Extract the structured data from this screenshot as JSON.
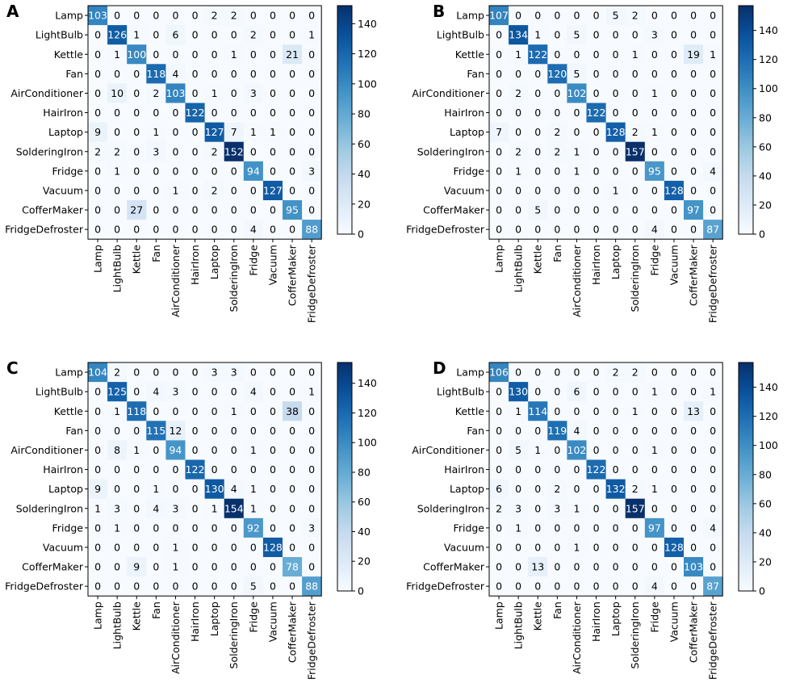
{
  "chart_data": [
    {
      "type": "heatmap",
      "panel_label": "A",
      "x_categories": [
        "Lamp",
        "LightBulb",
        "Kettle",
        "Fan",
        "AirConditioner",
        "HairIron",
        "Laptop",
        "SolderingIron",
        "Fridge",
        "Vacuum",
        "CofferMaker",
        "FridgeDefroster"
      ],
      "y_categories": [
        "Lamp",
        "LightBulb",
        "Kettle",
        "Fan",
        "AirConditioner",
        "HairIron",
        "Laptop",
        "SolderingIron",
        "Fridge",
        "Vacuum",
        "CofferMaker",
        "FridgeDefroster"
      ],
      "matrix": [
        [
          103,
          0,
          0,
          0,
          0,
          0,
          2,
          2,
          0,
          0,
          0,
          0
        ],
        [
          0,
          126,
          1,
          0,
          6,
          0,
          0,
          0,
          2,
          0,
          0,
          1
        ],
        [
          0,
          1,
          100,
          0,
          0,
          0,
          0,
          1,
          0,
          0,
          21,
          0
        ],
        [
          0,
          0,
          0,
          118,
          4,
          0,
          0,
          0,
          0,
          0,
          0,
          0
        ],
        [
          0,
          10,
          0,
          2,
          103,
          0,
          1,
          0,
          3,
          0,
          0,
          0
        ],
        [
          0,
          0,
          0,
          0,
          0,
          122,
          0,
          0,
          0,
          0,
          0,
          0
        ],
        [
          9,
          0,
          0,
          1,
          0,
          0,
          127,
          7,
          1,
          1,
          0,
          0
        ],
        [
          2,
          2,
          0,
          3,
          0,
          0,
          2,
          152,
          0,
          0,
          0,
          0
        ],
        [
          0,
          1,
          0,
          0,
          0,
          0,
          0,
          0,
          94,
          0,
          0,
          3
        ],
        [
          0,
          0,
          0,
          0,
          1,
          0,
          2,
          0,
          0,
          127,
          0,
          0
        ],
        [
          0,
          0,
          27,
          0,
          0,
          0,
          0,
          0,
          0,
          0,
          95,
          0
        ],
        [
          0,
          0,
          0,
          0,
          0,
          0,
          0,
          0,
          4,
          0,
          0,
          88
        ]
      ],
      "vmin": 0,
      "vmax": 152,
      "colorbar_ticks": [
        0,
        20,
        40,
        60,
        80,
        100,
        120,
        140
      ],
      "colormap": "Blues"
    },
    {
      "type": "heatmap",
      "panel_label": "B",
      "x_categories": [
        "Lamp",
        "LightBulb",
        "Kettle",
        "Fan",
        "AirConditioner",
        "HairIron",
        "Laptop",
        "SolderingIron",
        "Fridge",
        "Vacuum",
        "CofferMaker",
        "FridgeDefroster"
      ],
      "y_categories": [
        "Lamp",
        "LightBulb",
        "Kettle",
        "Fan",
        "AirConditioner",
        "HairIron",
        "Laptop",
        "SolderingIron",
        "Fridge",
        "Vacuum",
        "CofferMaker",
        "FridgeDefroster"
      ],
      "matrix": [
        [
          107,
          0,
          0,
          0,
          0,
          0,
          5,
          2,
          0,
          0,
          0,
          0
        ],
        [
          0,
          134,
          1,
          0,
          5,
          0,
          0,
          0,
          3,
          0,
          0,
          0
        ],
        [
          0,
          1,
          122,
          0,
          0,
          0,
          0,
          1,
          0,
          0,
          19,
          1
        ],
        [
          0,
          0,
          0,
          120,
          5,
          0,
          0,
          0,
          0,
          0,
          0,
          0
        ],
        [
          0,
          2,
          0,
          0,
          102,
          0,
          0,
          0,
          1,
          0,
          0,
          0
        ],
        [
          0,
          0,
          0,
          0,
          0,
          122,
          0,
          0,
          0,
          0,
          0,
          0
        ],
        [
          7,
          0,
          0,
          2,
          0,
          0,
          128,
          2,
          1,
          0,
          0,
          0
        ],
        [
          0,
          2,
          0,
          2,
          1,
          0,
          0,
          157,
          0,
          0,
          0,
          0
        ],
        [
          0,
          1,
          0,
          0,
          1,
          0,
          0,
          0,
          95,
          0,
          0,
          4
        ],
        [
          0,
          0,
          0,
          0,
          0,
          0,
          1,
          0,
          0,
          128,
          0,
          0
        ],
        [
          0,
          0,
          5,
          0,
          0,
          0,
          0,
          0,
          0,
          0,
          97,
          0
        ],
        [
          0,
          0,
          0,
          0,
          0,
          0,
          0,
          0,
          4,
          0,
          0,
          87
        ]
      ],
      "vmin": 0,
      "vmax": 157,
      "colorbar_ticks": [
        0,
        20,
        40,
        60,
        80,
        100,
        120,
        140
      ],
      "colormap": "Blues"
    },
    {
      "type": "heatmap",
      "panel_label": "C",
      "x_categories": [
        "Lamp",
        "LightBulb",
        "Kettle",
        "Fan",
        "AirConditioner",
        "HairIron",
        "Laptop",
        "SolderingIron",
        "Fridge",
        "Vacuum",
        "CofferMaker",
        "FridgeDefroster"
      ],
      "y_categories": [
        "Lamp",
        "LightBulb",
        "Kettle",
        "Fan",
        "AirConditioner",
        "HairIron",
        "Laptop",
        "SolderingIron",
        "Fridge",
        "Vacuum",
        "CofferMaker",
        "FridgeDefroster"
      ],
      "matrix": [
        [
          104,
          2,
          0,
          0,
          0,
          0,
          3,
          3,
          0,
          0,
          0,
          0
        ],
        [
          0,
          125,
          0,
          4,
          3,
          0,
          0,
          0,
          4,
          0,
          0,
          1
        ],
        [
          0,
          1,
          118,
          0,
          0,
          0,
          0,
          1,
          0,
          0,
          38,
          0
        ],
        [
          0,
          0,
          0,
          115,
          12,
          0,
          0,
          0,
          0,
          0,
          0,
          0
        ],
        [
          0,
          8,
          1,
          0,
          94,
          0,
          0,
          0,
          1,
          0,
          0,
          0
        ],
        [
          0,
          0,
          0,
          0,
          0,
          122,
          0,
          0,
          0,
          0,
          0,
          0
        ],
        [
          9,
          0,
          0,
          1,
          0,
          0,
          130,
          4,
          1,
          0,
          0,
          0
        ],
        [
          1,
          3,
          0,
          4,
          3,
          0,
          1,
          154,
          1,
          0,
          0,
          0
        ],
        [
          0,
          1,
          0,
          0,
          0,
          0,
          0,
          0,
          92,
          0,
          0,
          3
        ],
        [
          0,
          0,
          0,
          0,
          1,
          0,
          0,
          0,
          0,
          128,
          0,
          0
        ],
        [
          0,
          0,
          9,
          0,
          1,
          0,
          0,
          0,
          0,
          0,
          78,
          0
        ],
        [
          0,
          0,
          0,
          0,
          0,
          0,
          0,
          0,
          5,
          0,
          0,
          88
        ]
      ],
      "vmin": 0,
      "vmax": 154,
      "colorbar_ticks": [
        0,
        20,
        40,
        60,
        80,
        100,
        120,
        140
      ],
      "colormap": "Blues"
    },
    {
      "type": "heatmap",
      "panel_label": "D",
      "x_categories": [
        "Lamp",
        "LightBulb",
        "Kettle",
        "Fan",
        "AirConditioner",
        "HairIron",
        "Laptop",
        "SolderingIron",
        "Fridge",
        "Vacuum",
        "CofferMaker",
        "FridgeDefroster"
      ],
      "y_categories": [
        "Lamp",
        "LightBulb",
        "Kettle",
        "Fan",
        "AirConditioner",
        "HairIron",
        "Laptop",
        "SolderingIron",
        "Fridge",
        "Vacuum",
        "CofferMaker",
        "FridgeDefroster"
      ],
      "matrix": [
        [
          106,
          0,
          0,
          0,
          0,
          0,
          2,
          2,
          0,
          0,
          0,
          0
        ],
        [
          0,
          130,
          0,
          0,
          6,
          0,
          0,
          0,
          1,
          0,
          0,
          1
        ],
        [
          0,
          1,
          114,
          0,
          0,
          0,
          0,
          1,
          0,
          0,
          13,
          0
        ],
        [
          0,
          0,
          0,
          119,
          4,
          0,
          0,
          0,
          0,
          0,
          0,
          0
        ],
        [
          0,
          5,
          1,
          0,
          102,
          0,
          0,
          0,
          1,
          0,
          0,
          0
        ],
        [
          0,
          0,
          0,
          0,
          0,
          122,
          0,
          0,
          0,
          0,
          0,
          0
        ],
        [
          6,
          0,
          0,
          2,
          0,
          0,
          132,
          2,
          1,
          0,
          0,
          0
        ],
        [
          2,
          3,
          0,
          3,
          1,
          0,
          0,
          157,
          0,
          0,
          0,
          0
        ],
        [
          0,
          1,
          0,
          0,
          0,
          0,
          0,
          0,
          97,
          0,
          0,
          4
        ],
        [
          0,
          0,
          0,
          0,
          1,
          0,
          0,
          0,
          0,
          128,
          0,
          0
        ],
        [
          0,
          0,
          13,
          0,
          0,
          0,
          0,
          0,
          0,
          0,
          103,
          0
        ],
        [
          0,
          0,
          0,
          0,
          0,
          0,
          0,
          0,
          4,
          0,
          0,
          87
        ]
      ],
      "vmin": 0,
      "vmax": 157,
      "colorbar_ticks": [
        0,
        20,
        40,
        60,
        80,
        100,
        120,
        140
      ],
      "colormap": "Blues"
    }
  ]
}
